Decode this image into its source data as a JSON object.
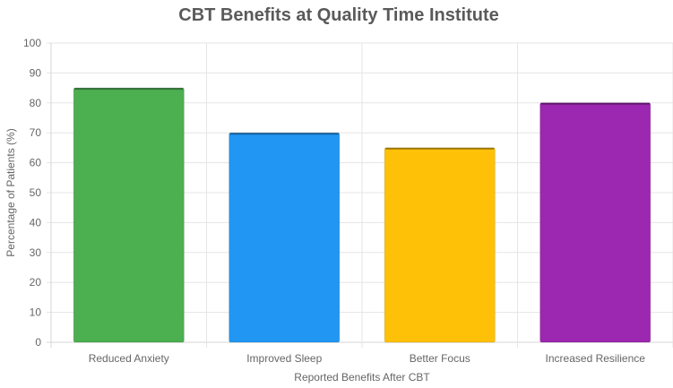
{
  "chart_data": {
    "type": "bar",
    "title": "CBT Benefits at Quality Time Institute",
    "xlabel": "Reported Benefits After CBT",
    "ylabel": "Percentage of Patients (%)",
    "categories": [
      "Reduced Anxiety",
      "Improved Sleep",
      "Better Focus",
      "Increased Resilience"
    ],
    "values": [
      85,
      70,
      65,
      80
    ],
    "colors": [
      "#4CAF50",
      "#2196F3",
      "#FFC107",
      "#9C27B0"
    ],
    "ylim": [
      0,
      100
    ],
    "yticks": [
      "0",
      "10",
      "20",
      "30",
      "40",
      "50",
      "60",
      "70",
      "80",
      "90",
      "100"
    ],
    "grid": true,
    "legend": "none"
  }
}
